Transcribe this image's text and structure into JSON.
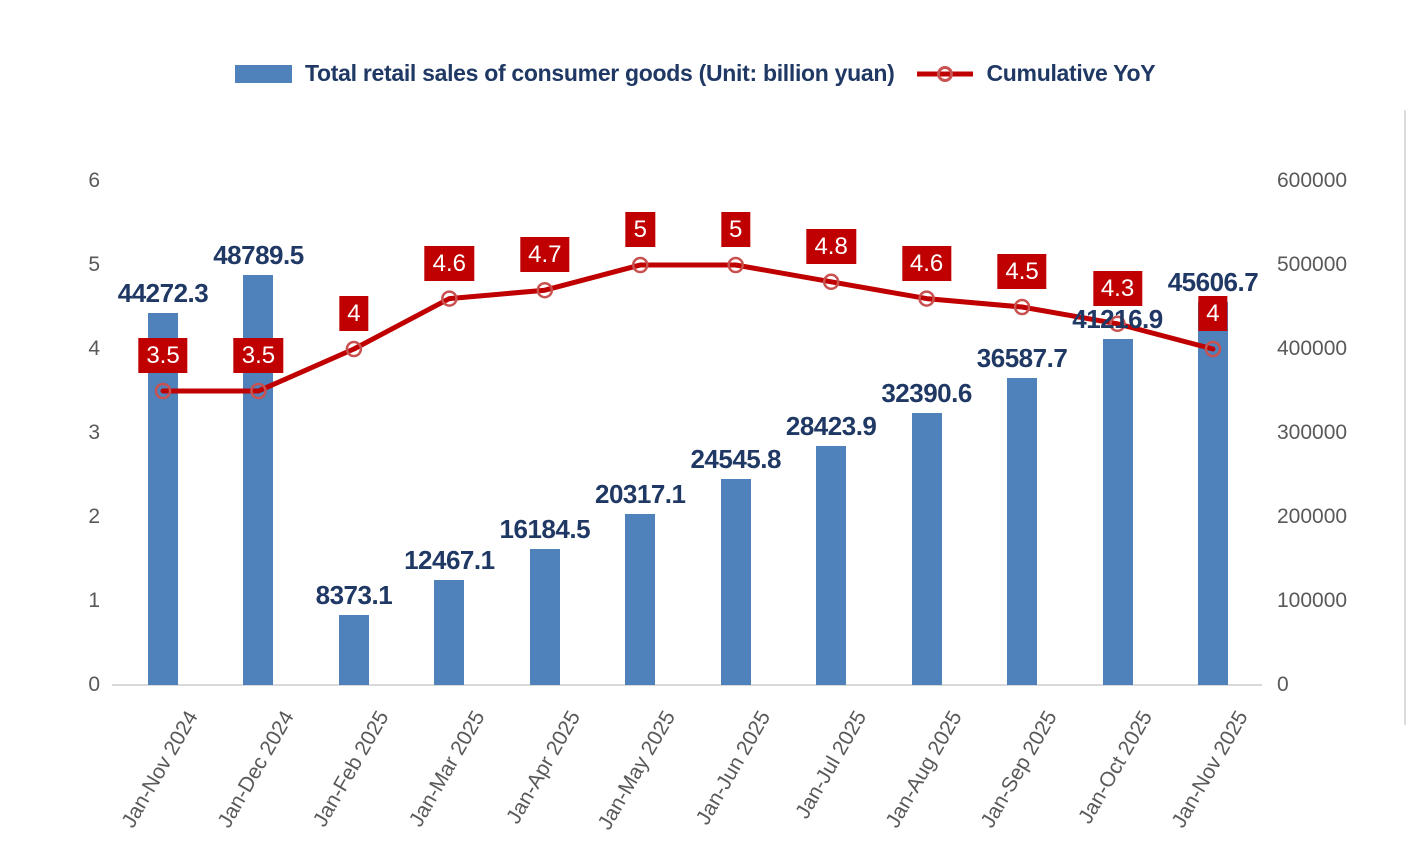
{
  "chart_data": {
    "type": "combo",
    "title": "",
    "categories": [
      "Jan-Nov 2024",
      "Jan-Dec 2024",
      "Jan-Feb 2025",
      "Jan-Mar 2025",
      "Jan-Apr 2025",
      "Jan-May 2025",
      "Jan-Jun 2025",
      "Jan-Jul 2025",
      "Jan-Aug 2025",
      "Jan-Sep 2025",
      "Jan-Oct 2025",
      "Jan-Nov 2025"
    ],
    "series": [
      {
        "name": "Total retail sales of consumer goods (Unit: billion yuan)",
        "type": "bar",
        "axis": "right",
        "values": [
          44272.3,
          48789.5,
          8373.1,
          12467.1,
          16184.5,
          20317.1,
          24545.8,
          28423.9,
          32390.6,
          36587.7,
          41216.9,
          45606.7
        ],
        "data_labels": [
          "44272.3",
          "48789.5",
          "8373.1",
          "12467.1",
          "16184.5",
          "20317.1",
          "24545.8",
          "28423.9",
          "32390.6",
          "36587.7",
          "41216.9",
          "45606.7"
        ],
        "color": "#4F81BB"
      },
      {
        "name": "Cumulative YoY",
        "type": "line",
        "axis": "left",
        "values": [
          3.5,
          3.5,
          4,
          4.6,
          4.7,
          5,
          5,
          4.8,
          4.6,
          4.5,
          4.3,
          4
        ],
        "data_labels": [
          "3.5",
          "3.5",
          "4",
          "4.6",
          "4.7",
          "5",
          "5",
          "4.8",
          "4.6",
          "4.5",
          "4.3",
          "4"
        ],
        "color": "#C00000",
        "marker": "open-circle"
      }
    ],
    "axes": {
      "left": {
        "min": 0,
        "max": 6,
        "ticks": [
          "0",
          "1",
          "2",
          "3",
          "4",
          "5",
          "6"
        ]
      },
      "right": {
        "min": 0,
        "max": 600000,
        "ticks": [
          "0",
          "100000",
          "200000",
          "300000",
          "400000",
          "500000",
          "600000"
        ]
      }
    },
    "legend_position": "top",
    "gridlines": false
  },
  "colors": {
    "bar": "#4F81BB",
    "line": "#C00000",
    "marker_ring": "#C9514F",
    "callout_bg": "#C00000",
    "callout_text": "#FFFFFF",
    "data_label": "#1F3864",
    "axis_text": "#595959",
    "axis_line": "#D9D9D9",
    "background": "#FFFFFF"
  }
}
